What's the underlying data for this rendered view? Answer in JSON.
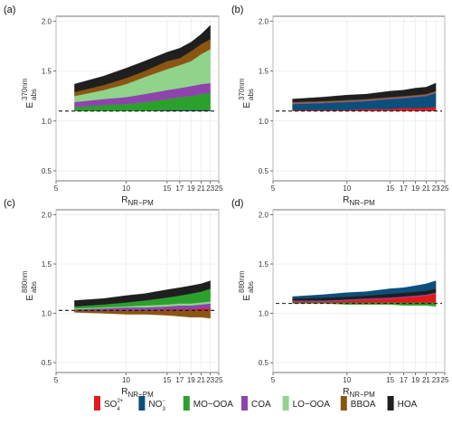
{
  "figure": {
    "legend": {
      "placement": "bottom",
      "items": [
        {
          "key": "so4",
          "label": "SO",
          "sub": "4",
          "sup": "2+",
          "color": "#e31a1c"
        },
        {
          "key": "no3",
          "label": "NO",
          "sub": "3",
          "sup": "−",
          "color": "#0b4f7c"
        },
        {
          "key": "mo",
          "label": "MO−OOA",
          "color": "#2ca02c"
        },
        {
          "key": "coa",
          "label": "COA",
          "color": "#8e44ad"
        },
        {
          "key": "lo",
          "label": "LO−OOA",
          "color": "#8fd48a"
        },
        {
          "key": "bboa",
          "label": "BBOA",
          "color": "#8c5512"
        },
        {
          "key": "hoa",
          "label": "HOA",
          "color": "#1f1f1f"
        }
      ]
    }
  },
  "chart_data": [
    {
      "panel": "(a)",
      "type": "area",
      "xlabel": {
        "main": "R",
        "sub": "NR−PM"
      },
      "ylabel": {
        "main": "E",
        "sub": "abs",
        "sup": "370nm"
      },
      "x_scale": "log",
      "xlim": [
        5,
        25
      ],
      "ylim": [
        0.4,
        2.05
      ],
      "xticks": [
        5,
        10,
        15,
        17,
        19,
        21,
        23,
        25
      ],
      "yticks": [
        0.5,
        1.0,
        1.5,
        2.0
      ],
      "grid": true,
      "reference_line": 1.1,
      "x": [
        6,
        8,
        10,
        12,
        15,
        17,
        19,
        21,
        23
      ],
      "series": [
        {
          "key": "so4",
          "lower": [
            1.1,
            1.1,
            1.1,
            1.1,
            1.1,
            1.1,
            1.1,
            1.1,
            1.1
          ],
          "upper": [
            1.1,
            1.1,
            1.1,
            1.1,
            1.1,
            1.1,
            1.1,
            1.1,
            1.1
          ]
        },
        {
          "key": "no3",
          "lower": [
            1.1,
            1.1,
            1.1,
            1.1,
            1.1,
            1.1,
            1.1,
            1.1,
            1.1
          ],
          "upper": [
            1.1,
            1.1,
            1.1,
            1.1,
            1.11,
            1.11,
            1.11,
            1.11,
            1.11
          ]
        },
        {
          "key": "mo",
          "lower": [
            1.1,
            1.1,
            1.1,
            1.1,
            1.11,
            1.11,
            1.11,
            1.11,
            1.11
          ],
          "upper": [
            1.14,
            1.16,
            1.17,
            1.19,
            1.22,
            1.24,
            1.25,
            1.27,
            1.28
          ]
        },
        {
          "key": "coa",
          "lower": [
            1.14,
            1.16,
            1.17,
            1.19,
            1.22,
            1.24,
            1.25,
            1.27,
            1.28
          ],
          "upper": [
            1.19,
            1.22,
            1.24,
            1.27,
            1.31,
            1.33,
            1.35,
            1.37,
            1.38
          ]
        },
        {
          "key": "lo",
          "lower": [
            1.19,
            1.22,
            1.24,
            1.27,
            1.31,
            1.33,
            1.35,
            1.37,
            1.38
          ],
          "upper": [
            1.25,
            1.31,
            1.37,
            1.44,
            1.52,
            1.56,
            1.6,
            1.67,
            1.72
          ]
        },
        {
          "key": "bboa",
          "lower": [
            1.25,
            1.31,
            1.37,
            1.44,
            1.52,
            1.56,
            1.6,
            1.67,
            1.72
          ],
          "upper": [
            1.29,
            1.36,
            1.43,
            1.5,
            1.6,
            1.63,
            1.7,
            1.77,
            1.82
          ]
        },
        {
          "key": "hoa",
          "lower": [
            1.29,
            1.36,
            1.43,
            1.5,
            1.6,
            1.63,
            1.7,
            1.77,
            1.82
          ],
          "upper": [
            1.37,
            1.45,
            1.53,
            1.6,
            1.69,
            1.73,
            1.79,
            1.87,
            1.96
          ]
        }
      ]
    },
    {
      "panel": "(b)",
      "type": "area",
      "xlabel": {
        "main": "R",
        "sub": "NR−PM"
      },
      "ylabel": {
        "main": "E",
        "sub": "abs",
        "sup": "370nm"
      },
      "x_scale": "log",
      "xlim": [
        5,
        25
      ],
      "ylim": [
        0.4,
        2.05
      ],
      "xticks": [
        5,
        10,
        15,
        17,
        19,
        21,
        23,
        25
      ],
      "yticks": [
        0.5,
        1.0,
        1.5,
        2.0
      ],
      "grid": true,
      "reference_line": 1.1,
      "x": [
        6,
        8,
        10,
        12,
        15,
        17,
        19,
        21,
        23
      ],
      "series": [
        {
          "key": "so4",
          "lower": [
            1.1,
            1.1,
            1.1,
            1.1,
            1.1,
            1.1,
            1.1,
            1.1,
            1.1
          ],
          "upper": [
            1.11,
            1.11,
            1.11,
            1.12,
            1.12,
            1.13,
            1.13,
            1.13,
            1.14
          ]
        },
        {
          "key": "no3",
          "lower": [
            1.11,
            1.11,
            1.11,
            1.12,
            1.12,
            1.13,
            1.13,
            1.13,
            1.14
          ],
          "upper": [
            1.17,
            1.18,
            1.19,
            1.2,
            1.22,
            1.23,
            1.24,
            1.25,
            1.28
          ]
        },
        {
          "key": "mo",
          "lower": [
            1.17,
            1.18,
            1.19,
            1.2,
            1.22,
            1.23,
            1.24,
            1.25,
            1.28
          ],
          "upper": [
            1.17,
            1.18,
            1.19,
            1.2,
            1.22,
            1.23,
            1.24,
            1.25,
            1.28
          ]
        },
        {
          "key": "coa",
          "lower": [
            1.17,
            1.18,
            1.19,
            1.2,
            1.22,
            1.23,
            1.24,
            1.25,
            1.28
          ],
          "upper": [
            1.18,
            1.19,
            1.2,
            1.21,
            1.23,
            1.24,
            1.25,
            1.26,
            1.29
          ]
        },
        {
          "key": "lo",
          "lower": [
            1.18,
            1.19,
            1.2,
            1.21,
            1.23,
            1.24,
            1.25,
            1.26,
            1.29
          ],
          "upper": [
            1.18,
            1.19,
            1.2,
            1.21,
            1.23,
            1.24,
            1.25,
            1.26,
            1.29
          ]
        },
        {
          "key": "bboa",
          "lower": [
            1.18,
            1.19,
            1.2,
            1.21,
            1.23,
            1.24,
            1.25,
            1.26,
            1.29
          ],
          "upper": [
            1.19,
            1.2,
            1.21,
            1.22,
            1.24,
            1.25,
            1.26,
            1.27,
            1.3
          ]
        },
        {
          "key": "hoa",
          "lower": [
            1.19,
            1.2,
            1.21,
            1.22,
            1.24,
            1.25,
            1.26,
            1.27,
            1.3
          ],
          "upper": [
            1.22,
            1.24,
            1.26,
            1.27,
            1.3,
            1.31,
            1.33,
            1.34,
            1.38
          ]
        }
      ]
    },
    {
      "panel": "(c)",
      "type": "area",
      "xlabel": {
        "main": "R",
        "sub": "NR−PM"
      },
      "ylabel": {
        "main": "E",
        "sub": "abs",
        "sup": "880nm"
      },
      "x_scale": "log",
      "xlim": [
        5,
        25
      ],
      "ylim": [
        0.4,
        2.05
      ],
      "xticks": [
        5,
        10,
        15,
        17,
        19,
        21,
        23,
        25
      ],
      "yticks": [
        0.5,
        1.0,
        1.5,
        2.0
      ],
      "grid": true,
      "reference_line": 1.03,
      "x": [
        6,
        8,
        10,
        12,
        15,
        17,
        19,
        21,
        23
      ],
      "series": [
        {
          "key": "bboa",
          "lower": [
            1.01,
            1.0,
            0.99,
            0.99,
            0.98,
            0.97,
            0.96,
            0.96,
            0.95
          ],
          "upper": [
            1.03,
            1.03,
            1.03,
            1.03,
            1.03,
            1.03,
            1.03,
            1.03,
            1.03
          ]
        },
        {
          "key": "so4",
          "lower": [
            1.03,
            1.03,
            1.03,
            1.03,
            1.03,
            1.03,
            1.03,
            1.03,
            1.03
          ],
          "upper": [
            1.03,
            1.03,
            1.03,
            1.03,
            1.04,
            1.04,
            1.04,
            1.05,
            1.05
          ]
        },
        {
          "key": "no3",
          "lower": [
            1.03,
            1.03,
            1.03,
            1.03,
            1.04,
            1.04,
            1.04,
            1.05,
            1.05
          ],
          "upper": [
            1.03,
            1.03,
            1.03,
            1.03,
            1.04,
            1.04,
            1.04,
            1.05,
            1.05
          ]
        },
        {
          "key": "coa",
          "lower": [
            1.03,
            1.03,
            1.03,
            1.03,
            1.04,
            1.04,
            1.04,
            1.05,
            1.05
          ],
          "upper": [
            1.04,
            1.05,
            1.06,
            1.06,
            1.07,
            1.08,
            1.08,
            1.09,
            1.1
          ]
        },
        {
          "key": "lo",
          "lower": [
            1.04,
            1.05,
            1.06,
            1.06,
            1.07,
            1.08,
            1.08,
            1.09,
            1.1
          ],
          "upper": [
            1.05,
            1.06,
            1.07,
            1.08,
            1.09,
            1.1,
            1.1,
            1.11,
            1.12
          ]
        },
        {
          "key": "mo",
          "lower": [
            1.05,
            1.06,
            1.07,
            1.08,
            1.09,
            1.1,
            1.1,
            1.11,
            1.12
          ],
          "upper": [
            1.07,
            1.09,
            1.11,
            1.13,
            1.16,
            1.18,
            1.2,
            1.22,
            1.25
          ]
        },
        {
          "key": "hoa",
          "lower": [
            1.07,
            1.09,
            1.11,
            1.13,
            1.16,
            1.18,
            1.2,
            1.22,
            1.25
          ],
          "upper": [
            1.13,
            1.15,
            1.18,
            1.2,
            1.24,
            1.26,
            1.28,
            1.3,
            1.33
          ]
        }
      ]
    },
    {
      "panel": "(d)",
      "type": "area",
      "xlabel": {
        "main": "R",
        "sub": "NR−PM"
      },
      "ylabel": {
        "main": "E",
        "sub": "abs",
        "sup": "880nm"
      },
      "x_scale": "log",
      "xlim": [
        5,
        25
      ],
      "ylim": [
        0.4,
        2.05
      ],
      "xticks": [
        5,
        10,
        15,
        17,
        19,
        21,
        23,
        25
      ],
      "yticks": [
        0.5,
        1.0,
        1.5,
        2.0
      ],
      "grid": true,
      "reference_line": 1.1,
      "x": [
        6,
        8,
        10,
        12,
        15,
        17,
        19,
        21,
        23
      ],
      "series": [
        {
          "key": "mo",
          "lower": [
            1.1,
            1.1,
            1.09,
            1.09,
            1.09,
            1.08,
            1.08,
            1.08,
            1.07
          ],
          "upper": [
            1.11,
            1.11,
            1.11,
            1.11,
            1.11,
            1.11,
            1.11,
            1.11,
            1.11
          ]
        },
        {
          "key": "so4",
          "lower": [
            1.11,
            1.11,
            1.11,
            1.11,
            1.11,
            1.11,
            1.11,
            1.11,
            1.11
          ],
          "upper": [
            1.12,
            1.12,
            1.13,
            1.14,
            1.15,
            1.16,
            1.17,
            1.18,
            1.2
          ]
        },
        {
          "key": "coa",
          "lower": [
            1.12,
            1.12,
            1.13,
            1.14,
            1.15,
            1.16,
            1.17,
            1.18,
            1.2
          ],
          "upper": [
            1.13,
            1.13,
            1.14,
            1.15,
            1.16,
            1.17,
            1.18,
            1.19,
            1.21
          ]
        },
        {
          "key": "hoa",
          "lower": [
            1.13,
            1.13,
            1.14,
            1.15,
            1.16,
            1.17,
            1.18,
            1.19,
            1.21
          ],
          "upper": [
            1.15,
            1.16,
            1.17,
            1.18,
            1.2,
            1.21,
            1.22,
            1.23,
            1.25
          ]
        },
        {
          "key": "no3",
          "lower": [
            1.15,
            1.16,
            1.17,
            1.18,
            1.2,
            1.21,
            1.22,
            1.23,
            1.25
          ],
          "upper": [
            1.17,
            1.19,
            1.21,
            1.22,
            1.25,
            1.26,
            1.28,
            1.3,
            1.33
          ]
        }
      ]
    }
  ]
}
